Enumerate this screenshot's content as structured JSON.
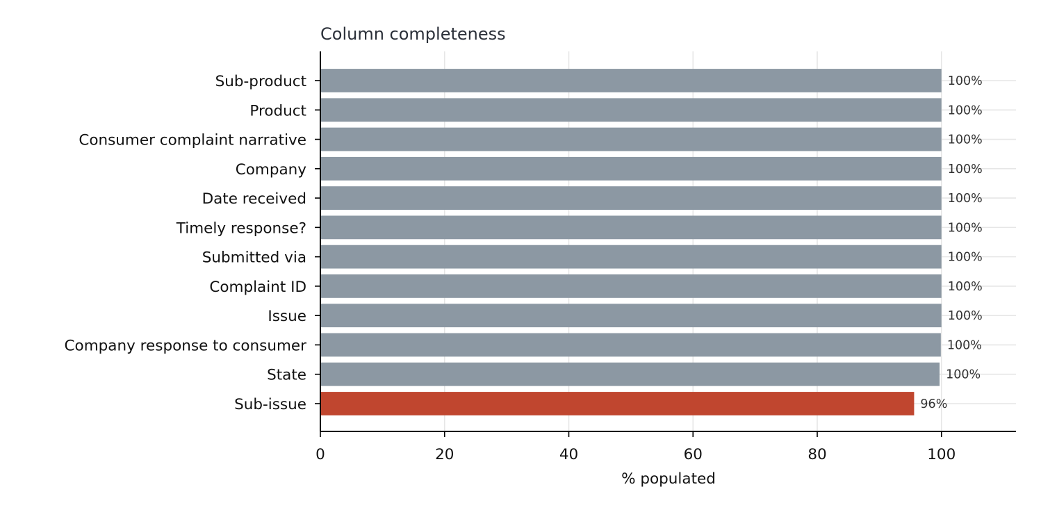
{
  "chart_data": {
    "type": "bar",
    "orientation": "horizontal",
    "title": "Column completeness",
    "xlabel": "% populated",
    "ylabel": "",
    "xlim": [
      0,
      112
    ],
    "x_ticks": [
      0,
      20,
      40,
      60,
      80,
      100
    ],
    "categories": [
      "Sub-product",
      "Product",
      "Consumer complaint narrative",
      "Company",
      "Date received",
      "Timely response?",
      "Submitted via",
      "Complaint ID",
      "Issue",
      "Company response to consumer",
      "State",
      "Sub-issue"
    ],
    "values": [
      100,
      100,
      100,
      100,
      100,
      100,
      100,
      100,
      100,
      99.9,
      99.7,
      95.6
    ],
    "data_labels": [
      "100%",
      "100%",
      "100%",
      "100%",
      "100%",
      "100%",
      "100%",
      "100%",
      "100%",
      "100%",
      "100%",
      "96%"
    ],
    "colors": {
      "default": "#8c98a3",
      "highlight": "#c0462f"
    },
    "highlight_index": 11,
    "grid": true,
    "legend": "none"
  }
}
